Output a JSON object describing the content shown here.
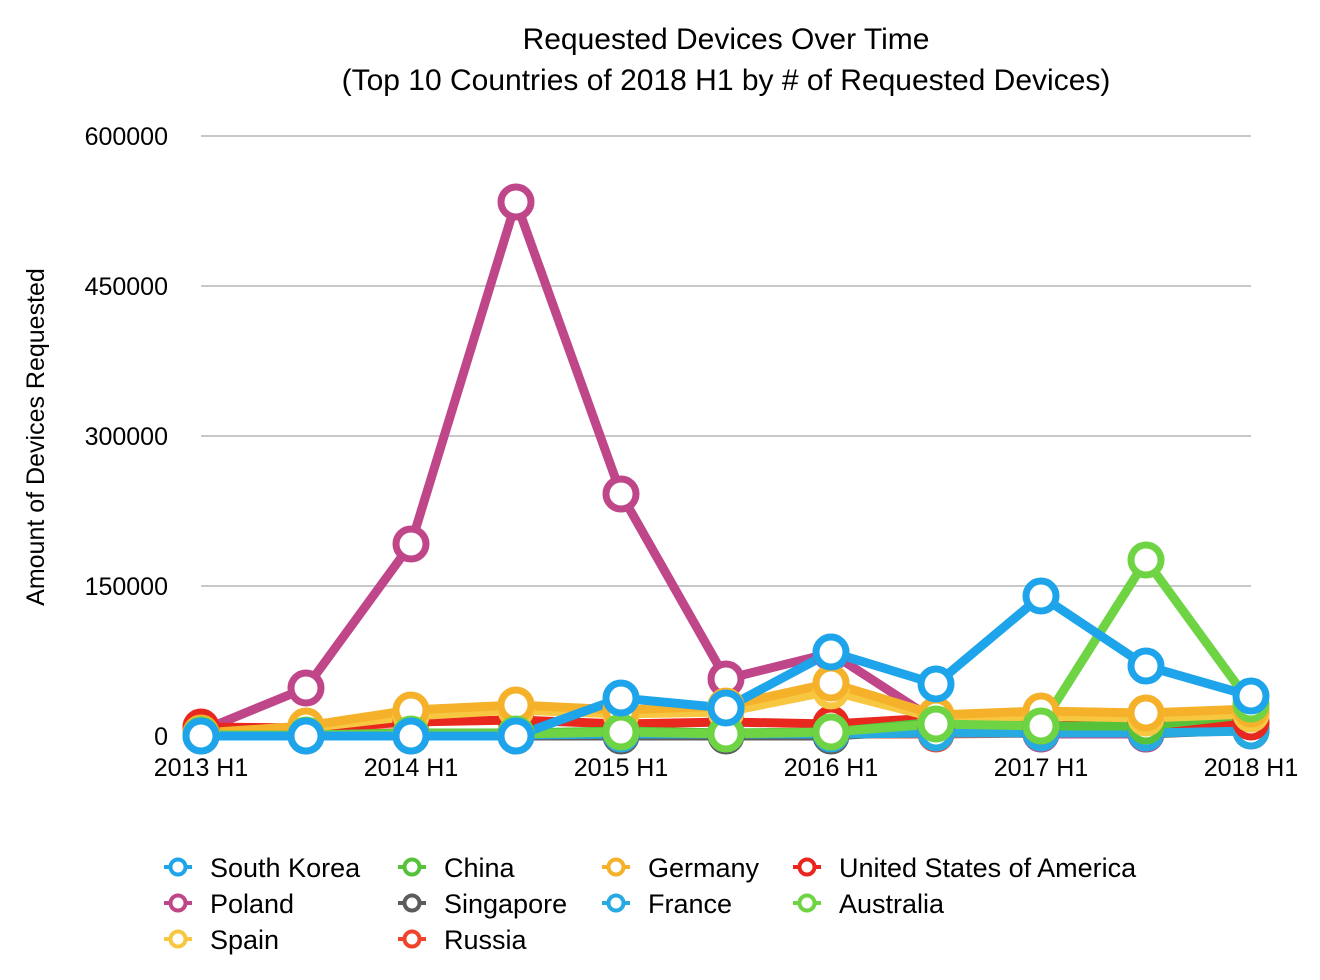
{
  "chart_data": {
    "type": "line",
    "title": "Requested Devices Over Time",
    "subtitle": "(Top 10 Countries of 2018 H1 by # of Requested Devices)",
    "xlabel": "",
    "ylabel": "Amount of Devices Requested",
    "ylim": [
      0,
      600000
    ],
    "yticks": [
      "0",
      "150000",
      "300000",
      "450000",
      "600000"
    ],
    "x": [
      "2013 H1",
      "2013 H2",
      "2014 H1",
      "2014 H2",
      "2015 H1",
      "2015 H2",
      "2016 H1",
      "2016 H2",
      "2017 H1",
      "2017 H2",
      "2018 H1"
    ],
    "xtick_labels": [
      "2013 H1",
      "",
      "2014 H1",
      "",
      "2015 H1",
      "",
      "2016 H1",
      "",
      "2017 H1",
      "",
      "2018 H1"
    ],
    "grid": true,
    "legend_position": "bottom",
    "series": [
      {
        "name": "Russia",
        "color": "#f0432c",
        "values": [
          3000,
          3000,
          3000,
          3000,
          2000,
          2000,
          2000,
          2000,
          3000,
          4000,
          5000
        ]
      },
      {
        "name": "Singapore",
        "color": "#5c5c5c",
        "values": [
          0,
          0,
          0,
          0,
          0,
          0,
          0,
          6000,
          2000,
          2000,
          6000
        ]
      },
      {
        "name": "Poland",
        "color": "#c0468a",
        "values": [
          5000,
          48000,
          192000,
          534000,
          242000,
          57000,
          83000,
          15000,
          2000,
          2000,
          12000
        ]
      },
      {
        "name": "France",
        "color": "#27a9e1",
        "values": [
          1000,
          1000,
          1000,
          1000,
          2000,
          2000,
          2000,
          3000,
          3000,
          3000,
          5000
        ]
      },
      {
        "name": "United States of America",
        "color": "#e8271f",
        "values": [
          9000,
          8000,
          14000,
          16000,
          12000,
          14000,
          12000,
          18000,
          10000,
          12000,
          14000
        ]
      },
      {
        "name": "China",
        "color": "#56c23a",
        "values": [
          1000,
          1000,
          3000,
          3000,
          5000,
          3000,
          4000,
          14000,
          10000,
          10000,
          22000
        ]
      },
      {
        "name": "Spain",
        "color": "#f7c742",
        "values": [
          2000,
          8000,
          20000,
          26000,
          22000,
          24000,
          45000,
          18000,
          20000,
          18000,
          22000
        ]
      },
      {
        "name": "Germany",
        "color": "#f5b12a",
        "values": [
          3000,
          10000,
          26000,
          31000,
          26000,
          30000,
          53000,
          21000,
          25000,
          23000,
          27000
        ]
      },
      {
        "name": "Australia",
        "color": "#6fd444",
        "values": [
          1000,
          1000,
          2000,
          2000,
          4000,
          2000,
          4000,
          12000,
          10000,
          176000,
          32000
        ]
      },
      {
        "name": "South Korea",
        "color": "#1da4ea",
        "values": [
          0,
          0,
          0,
          0,
          38000,
          28000,
          84000,
          52000,
          140000,
          70000,
          40000
        ]
      }
    ],
    "legend_order": [
      "South Korea",
      "China",
      "Germany",
      "United States of America",
      "Poland",
      "Singapore",
      "France",
      "Australia",
      "Spain",
      "Russia"
    ]
  }
}
